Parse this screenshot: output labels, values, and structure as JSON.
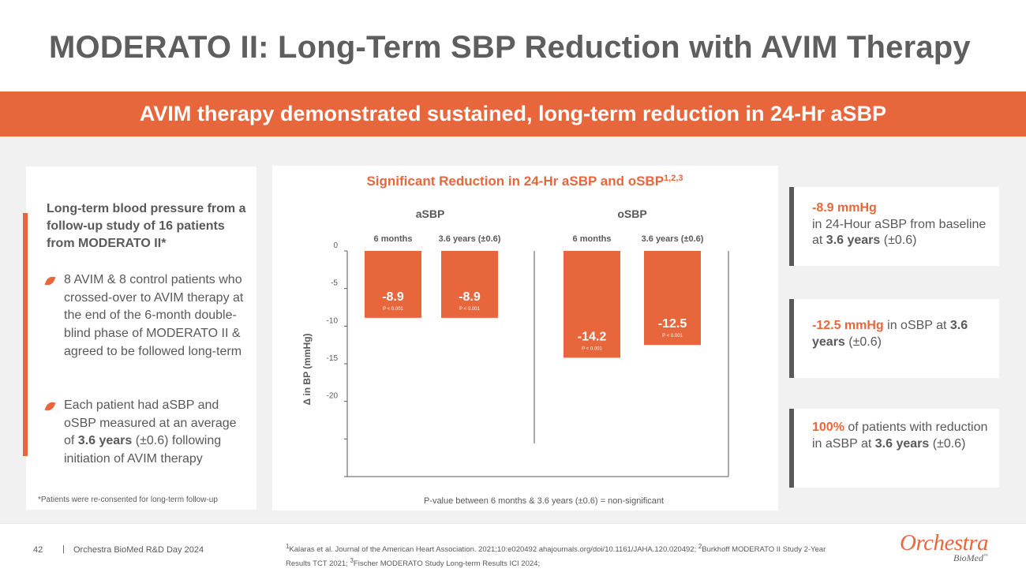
{
  "title": "MODERATO II: Long-Term SBP Reduction with AVIM Therapy",
  "banner": "AVIM therapy demonstrated sustained, long-term reduction in 24-Hr aSBP",
  "left_panel": {
    "heading": "Long-term blood pressure from a follow-up study of 16 patients from MODERATO II*",
    "bullets": [
      "8 AVIM & 8 control patients who crossed-over to AVIM therapy at the end of the 6-month double-blind phase of MODERATO II & agreed to be followed long-term",
      {
        "pre": "Each patient had aSBP and oSBP measured at an average of ",
        "bold": "3.6 years",
        "post": " (±0.6) following initiation of AVIM therapy"
      }
    ],
    "footnote": "*Patients were re-consented for long-term follow-up"
  },
  "stats": [
    {
      "highlight": "-8.9 mmHg",
      "text": "in 24-Hour aSBP from baseline at ",
      "bold": "3.6 years",
      "suffix": " (±0.6)"
    },
    {
      "highlight": "-12.5 mmHg",
      "text": " in oSBP at ",
      "bold": "3.6 years",
      "suffix": " (±0.6)"
    },
    {
      "highlight": "100%",
      "text": " of patients with reduction in aSBP at ",
      "bold": "3.6 years",
      "suffix": " (±0.6)"
    }
  ],
  "chart_data": {
    "type": "bar",
    "title": "Significant Reduction in 24-Hr aSBP and oSBP",
    "title_superscript": "1,2,3",
    "ylabel": "Δ in BP (mmHg)",
    "ylim": [
      -30,
      0
    ],
    "yticks": [
      0,
      -5,
      -10,
      -15,
      -20
    ],
    "groups": [
      {
        "name": "aSBP",
        "bars": [
          {
            "label": "6 months",
            "value": -8.9,
            "value_label": "-8.9",
            "p": "P < 0.001"
          },
          {
            "label": "3.6 years (±0.6)",
            "value": -8.9,
            "value_label": "-8.9",
            "p": "P < 0.001"
          }
        ]
      },
      {
        "name": "oSBP",
        "bars": [
          {
            "label": "6 months",
            "value": -14.2,
            "value_label": "-14.2",
            "p": "P < 0.001"
          },
          {
            "label": "3.6 years (±0.6)",
            "value": -12.5,
            "value_label": "-12.5",
            "p": "P < 0.001"
          }
        ]
      }
    ],
    "note": "P-value between 6 months & 3.6 years (±0.6)  = non-significant",
    "bar_color": "#e8663c"
  },
  "footer": {
    "page_number": "42",
    "separator": "|",
    "event": "Orchestra BioMed R&D Day 2024",
    "references": [
      {
        "sup": "1",
        "text": "Kalaras et al. Journal of the American Heart Association. 2021;10:e020492 ahajournals.org/doi/10.1161/JAHA.120.020492; "
      },
      {
        "sup": "2",
        "text": "Burkhoff MODERATO  II Study 2-Year Results TCT 2021; "
      },
      {
        "sup": "3",
        "text": "Fischer MODERATO Study Long-term Results ICI 2024;"
      }
    ],
    "logo_main": "Orchestra",
    "logo_sub": "BioMed",
    "logo_tm": "™"
  },
  "colors": {
    "accent": "#e8663c",
    "text": "#595959",
    "panel_bg": "#f1f1f1"
  }
}
